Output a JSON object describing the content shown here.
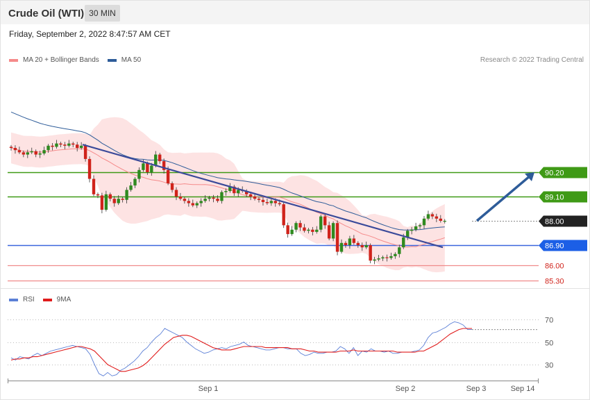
{
  "header": {
    "title": "Crude Oil (WTI)",
    "timeframe": "30 MIN",
    "datetime": "Friday, September 2, 2022 8:47:57 AM CET"
  },
  "legend_main": [
    {
      "label": "MA 20 + Bollinger Bands",
      "color": "#f58a8a"
    },
    {
      "label": "MA 50",
      "color": "#2e5c99"
    }
  ],
  "legend_rsi": [
    {
      "label": "RSI",
      "color": "#5b7fd6"
    },
    {
      "label": "9MA",
      "color": "#e01b1b"
    }
  ],
  "credit": "Research © 2022 Trading Central",
  "chart_data": [
    {
      "type": "candlestick",
      "ylim": [
        85.0,
        93.4
      ],
      "x_ticks": [
        "Sep 1",
        "Sep 2",
        "Sep 3",
        "Sep 14"
      ],
      "levels": [
        {
          "label": "90.20",
          "value": 90.2,
          "kind": "resistance",
          "color": "#3f9a16",
          "tag_color": "#3f9a16",
          "text_color": "#ffffff"
        },
        {
          "label": "89.10",
          "value": 89.1,
          "kind": "resistance",
          "color": "#3f9a16",
          "tag_color": "#3f9a16",
          "text_color": "#ffffff"
        },
        {
          "label": "88.00",
          "value": 88.0,
          "kind": "last price",
          "color": "#888888",
          "tag_color": "#222222",
          "text_color": "#ffffff"
        },
        {
          "label": "86.90",
          "value": 86.9,
          "kind": "pivot",
          "color": "#3a66dd",
          "tag_color": "#1c5fe6",
          "text_color": "#ffffff"
        },
        {
          "label": "86.00",
          "value": 86.0,
          "kind": "support",
          "color": "#f08a8a",
          "tag_color": "none",
          "text_color": "#d0231b"
        },
        {
          "label": "85.30",
          "value": 85.3,
          "kind": "support",
          "color": "#f08a8a",
          "tag_color": "none",
          "text_color": "#d0231b"
        }
      ],
      "closes": [
        91.3,
        91.2,
        91.1,
        91.0,
        91.1,
        91.15,
        91.0,
        91.05,
        91.2,
        91.4,
        91.35,
        91.5,
        91.45,
        91.4,
        91.5,
        91.45,
        91.3,
        91.4,
        90.8,
        89.9,
        89.2,
        89.15,
        88.5,
        89.2,
        89.0,
        88.8,
        89.0,
        88.95,
        89.4,
        89.6,
        89.9,
        90.3,
        90.6,
        90.2,
        90.5,
        91.0,
        90.7,
        90.3,
        89.7,
        89.4,
        89.1,
        89.0,
        88.9,
        88.8,
        88.7,
        88.8,
        88.9,
        89.0,
        89.05,
        89.0,
        88.9,
        89.3,
        89.35,
        89.55,
        89.25,
        89.4,
        89.35,
        89.2,
        89.1,
        89.0,
        88.95,
        88.85,
        88.8,
        88.9,
        88.8,
        88.75,
        87.8,
        87.4,
        87.6,
        87.9,
        87.7,
        87.55,
        87.6,
        87.5,
        87.6,
        88.2,
        87.8,
        87.2,
        87.9,
        86.6,
        87.0,
        86.9,
        87.2,
        87.0,
        86.9,
        86.8,
        86.9,
        86.2,
        86.25,
        86.3,
        86.35,
        86.32,
        86.4,
        86.5,
        86.8,
        87.25,
        87.55,
        87.6,
        87.75,
        87.8,
        88.1,
        88.3,
        88.2,
        88.1,
        88.0,
        88.0
      ],
      "trendline": {
        "from": 91.45,
        "to": 86.8,
        "color": "#3a4a9a"
      },
      "projection": {
        "from": 88.0,
        "to": 90.2,
        "color": "#2e5c99"
      }
    },
    {
      "type": "line",
      "title": "RSI",
      "ylim": [
        17,
        83
      ],
      "y_ticks": [
        30,
        50,
        70
      ],
      "series": [
        {
          "name": "RSI",
          "color": "#5b7fd6",
          "values": [
            36,
            34,
            37,
            36,
            35,
            38,
            40,
            38,
            40,
            42,
            43,
            44,
            45,
            46,
            47,
            46,
            45,
            44,
            39,
            30,
            22,
            20,
            23,
            20,
            21,
            25,
            27,
            30,
            33,
            37,
            42,
            45,
            50,
            54,
            57,
            62,
            60,
            58,
            56,
            54,
            50,
            47,
            44,
            42,
            40,
            41,
            43,
            44,
            45,
            44,
            46,
            47,
            48,
            50,
            47,
            46,
            45,
            44,
            43,
            43,
            44,
            45,
            45,
            44,
            44,
            44,
            40,
            38,
            39,
            41,
            40,
            40,
            41,
            41,
            42,
            46,
            44,
            40,
            45,
            38,
            42,
            41,
            44,
            42,
            42,
            41,
            42,
            40,
            40,
            41,
            41,
            41,
            42,
            43,
            47,
            54,
            58,
            59,
            61,
            63,
            66,
            68,
            67,
            65,
            61,
            61
          ]
        },
        {
          "name": "9MA",
          "color": "#e01b1b",
          "values": [
            34,
            35,
            35,
            36,
            36,
            37,
            37,
            38,
            39,
            40,
            41,
            42,
            43,
            44,
            45,
            46,
            46,
            45,
            44,
            42,
            38,
            34,
            30,
            28,
            26,
            24,
            24,
            25,
            26,
            27,
            29,
            32,
            36,
            40,
            44,
            48,
            51,
            54,
            55,
            56,
            56,
            55,
            53,
            51,
            49,
            47,
            45,
            44,
            43,
            43,
            43,
            44,
            45,
            46,
            46,
            46,
            46,
            46,
            45,
            45,
            45,
            45,
            45,
            45,
            44,
            44,
            44,
            43,
            42,
            42,
            41,
            41,
            41,
            41,
            41,
            42,
            42,
            42,
            43,
            42,
            42,
            42,
            42,
            42,
            42,
            42,
            42,
            42,
            41,
            41,
            41,
            41,
            41,
            42,
            42,
            44,
            46,
            48,
            51,
            54,
            57,
            59,
            61,
            62,
            62,
            62
          ]
        }
      ]
    }
  ]
}
